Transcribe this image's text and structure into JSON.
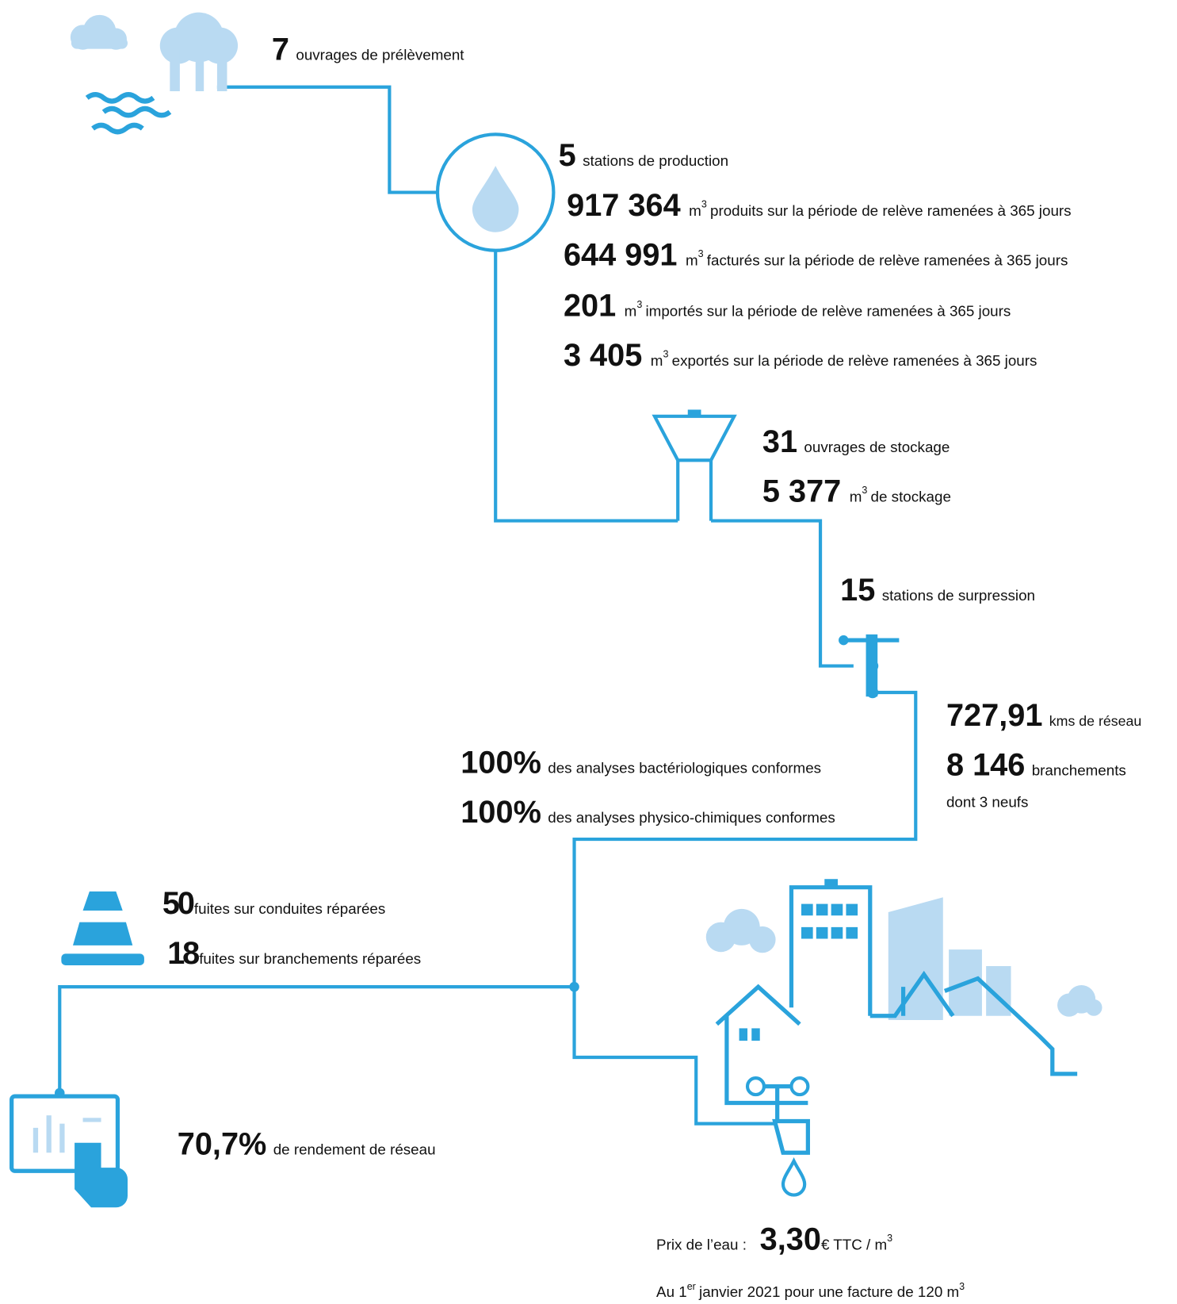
{
  "stats": [
    {
      "number": "7",
      "text": "ouvrages de prélèvement"
    },
    {
      "number": "5",
      "text": "stations de production"
    },
    {
      "number": "917 364",
      "unit": "m",
      "unit_exp": "3",
      "text": "produits sur la période de relève ramenées à 365 jours"
    },
    {
      "number": "644 991",
      "unit": "m",
      "unit_exp": "3",
      "text": "facturés sur la période de relève ramenées à 365 jours"
    },
    {
      "number": "201",
      "unit": "m",
      "unit_exp": "3",
      "text": "importés sur la période de relève ramenées à 365 jours"
    },
    {
      "number": "3 405",
      "unit": "m",
      "unit_exp": "3",
      "text": "exportés sur la période de relève ramenées à 365 jours"
    },
    {
      "number": "31",
      "text": "ouvrages de stockage"
    },
    {
      "number": "5 377",
      "unit": "m",
      "unit_exp": "3",
      "text": "de stockage"
    },
    {
      "number": "15",
      "text": "stations de surpression"
    },
    {
      "number": "727,91",
      "text": "kms de réseau"
    },
    {
      "number": "8 146",
      "text": "branchements",
      "note": "dont 3 neufs"
    },
    {
      "number": "100%",
      "text": "des analyses bactériologiques conformes"
    },
    {
      "number": "100%",
      "text": "des analyses physico-chimiques conformes"
    },
    {
      "number": "50",
      "text": "fuites sur conduites réparées"
    },
    {
      "number": "18",
      "text": "fuites sur branchements réparées"
    },
    {
      "number": "70,7%",
      "text": "de rendement de réseau"
    }
  ],
  "price": {
    "label": "Prix de l’eau :",
    "number": "3,30",
    "unit": "€ TTC / m",
    "unit_exp": "3"
  },
  "date_note": {
    "prefix": "Au 1",
    "prefix_sup": "er",
    "text": "janvier 2021 pour une facture de 120 m",
    "text_exp": "3"
  }
}
